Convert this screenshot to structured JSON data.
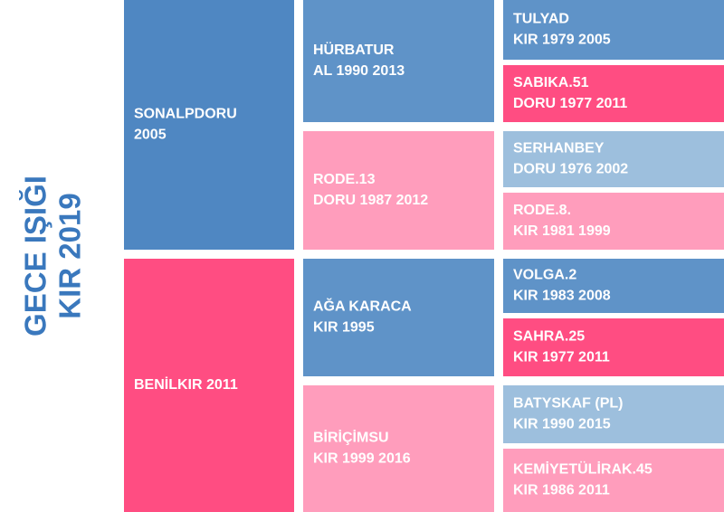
{
  "title": {
    "lines": [
      "GECE IŞIĞI",
      "KIR 2019"
    ]
  },
  "nodes": [
    {
      "lines": [
        "SONALPDORU",
        "2005"
      ]
    },
    {
      "lines": [
        "BENİLKIR 2011"
      ]
    },
    {
      "lines": [
        "HÜRBATUR",
        "AL 1990 2013"
      ]
    },
    {
      "lines": [
        "RODE.13",
        "DORU 1987 2012"
      ]
    },
    {
      "lines": [
        "AĞA KARACA",
        "KIR 1995"
      ]
    },
    {
      "lines": [
        "BİRİÇİMSU",
        "KIR 1999 2016"
      ]
    },
    {
      "lines": [
        "TULYAD",
        "KIR 1979 2005"
      ]
    },
    {
      "lines": [
        "SABIKA.51",
        "DORU 1977 2011"
      ]
    },
    {
      "lines": [
        "SERHANBEY",
        "DORU 1976 2002"
      ]
    },
    {
      "lines": [
        "RODE.8.",
        "KIR 1981 1999"
      ]
    },
    {
      "lines": [
        "VOLGA.2",
        "KIR 1983 2008"
      ]
    },
    {
      "lines": [
        "SAHRA.25",
        "KIR 1977 2011"
      ]
    },
    {
      "lines": [
        "BATYSKAF (PL)",
        "KIR 1990 2015"
      ]
    },
    {
      "lines": [
        "KEMİYETÜLİRAK.45",
        "KIR 1986 2011"
      ]
    }
  ]
}
